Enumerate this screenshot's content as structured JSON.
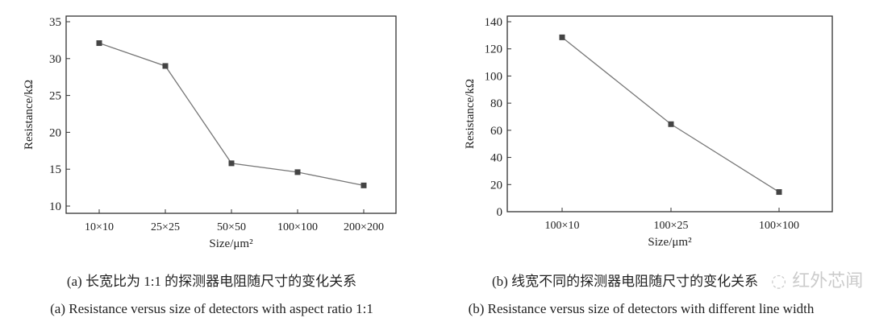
{
  "chart_data": [
    {
      "type": "line",
      "categories": [
        "10×10",
        "25×25",
        "50×50",
        "100×100",
        "200×200"
      ],
      "values": [
        32.1,
        29.0,
        15.8,
        14.6,
        12.8
      ],
      "xlabel": "Size/μm²",
      "ylabel": "Resistance/kΩ",
      "ylim": [
        9,
        36
      ],
      "yticks": [
        10,
        15,
        20,
        25,
        30,
        35
      ],
      "grid": false,
      "marker": "square",
      "caption_cn": "(a)  长宽比为 1:1 的探测器电阻随尺寸的变化关系",
      "caption_en": "(a) Resistance versus size of detectors with aspect ratio 1:1"
    },
    {
      "type": "line",
      "categories": [
        "100×10",
        "100×25",
        "100×100"
      ],
      "values": [
        128.5,
        64.5,
        14.5
      ],
      "xlabel": "Size/μm²",
      "ylabel": "Resistance/kΩ",
      "ylim": [
        0,
        144
      ],
      "yticks": [
        0,
        20,
        40,
        60,
        80,
        100,
        120,
        140
      ],
      "grid": false,
      "marker": "square",
      "caption_cn": "(b)  线宽不同的探测器电阻随尺寸的变化关系",
      "caption_en": "(b) Resistance versus size of detectors with different line width"
    }
  ],
  "watermark": "红外芯闻",
  "colors": {
    "line": "#777777",
    "marker": "#444444",
    "axis": "#333333"
  }
}
